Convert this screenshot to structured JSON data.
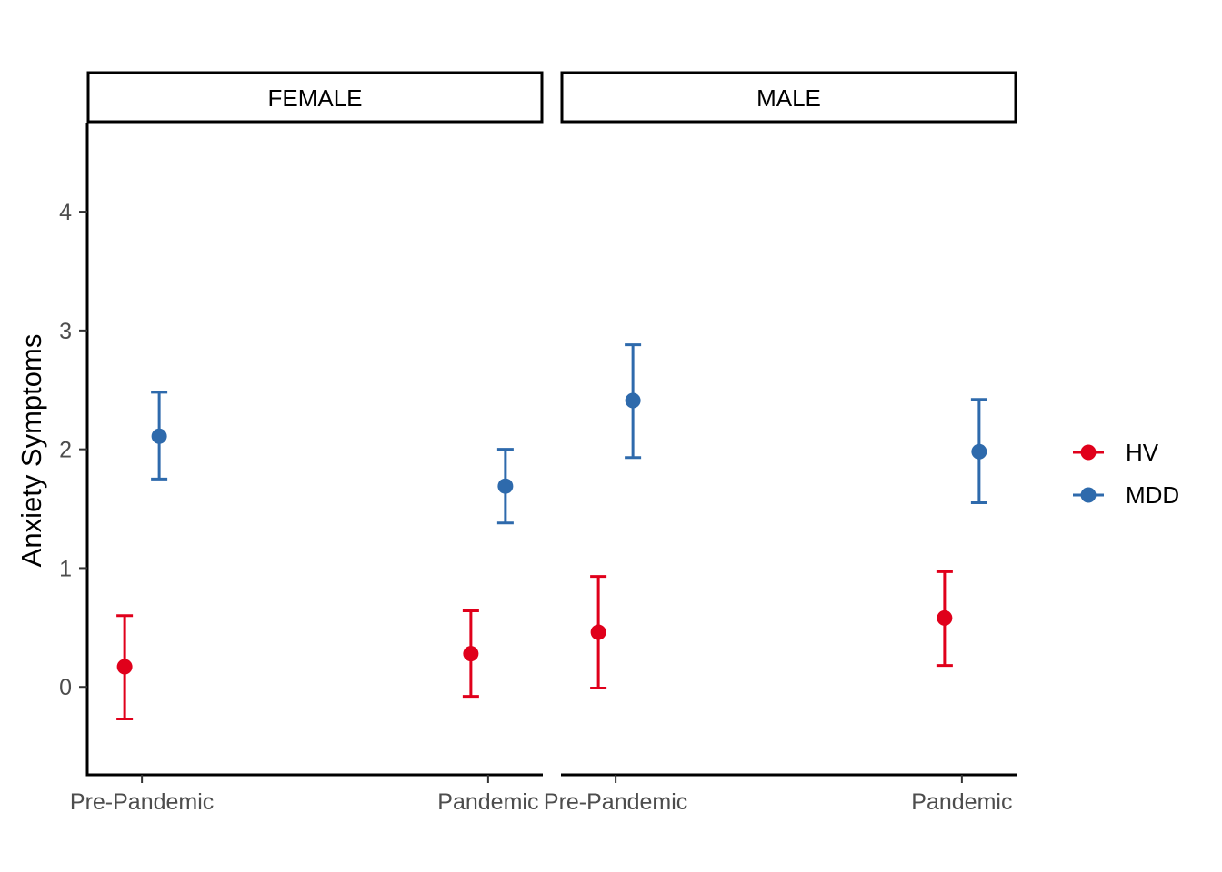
{
  "chart_data": {
    "type": "scatter",
    "subtype": "point-errorbar-faceted",
    "title": "",
    "xlabel": "",
    "ylabel": "Anxiety Symptoms",
    "ylim": [
      -0.74,
      4.75
    ],
    "yticks": [
      0,
      1,
      2,
      3,
      4
    ],
    "ytick_labels": [
      "0",
      "1",
      "2",
      "3",
      "4"
    ],
    "categories": [
      "Pre-Pandemic",
      "Pandemic"
    ],
    "facets": [
      "FEMALE",
      "MALE"
    ],
    "legend_position": "right",
    "grid": false,
    "series": [
      {
        "name": "HV",
        "color": "#e0001b",
        "points": {
          "FEMALE": [
            {
              "x": "Pre-Pandemic",
              "y": 0.17,
              "lo": -0.27,
              "hi": 0.6
            },
            {
              "x": "Pandemic",
              "y": 0.28,
              "lo": -0.08,
              "hi": 0.64
            }
          ],
          "MALE": [
            {
              "x": "Pre-Pandemic",
              "y": 0.46,
              "lo": -0.01,
              "hi": 0.93
            },
            {
              "x": "Pandemic",
              "y": 0.58,
              "lo": 0.18,
              "hi": 0.97
            }
          ]
        }
      },
      {
        "name": "MDD",
        "color": "#2e6aac",
        "points": {
          "FEMALE": [
            {
              "x": "Pre-Pandemic",
              "y": 2.11,
              "lo": 1.75,
              "hi": 2.48
            },
            {
              "x": "Pandemic",
              "y": 1.69,
              "lo": 1.38,
              "hi": 2.0
            }
          ],
          "MALE": [
            {
              "x": "Pre-Pandemic",
              "y": 2.41,
              "lo": 1.93,
              "hi": 2.88
            },
            {
              "x": "Pandemic",
              "y": 1.98,
              "lo": 1.55,
              "hi": 2.42
            }
          ]
        }
      }
    ]
  }
}
